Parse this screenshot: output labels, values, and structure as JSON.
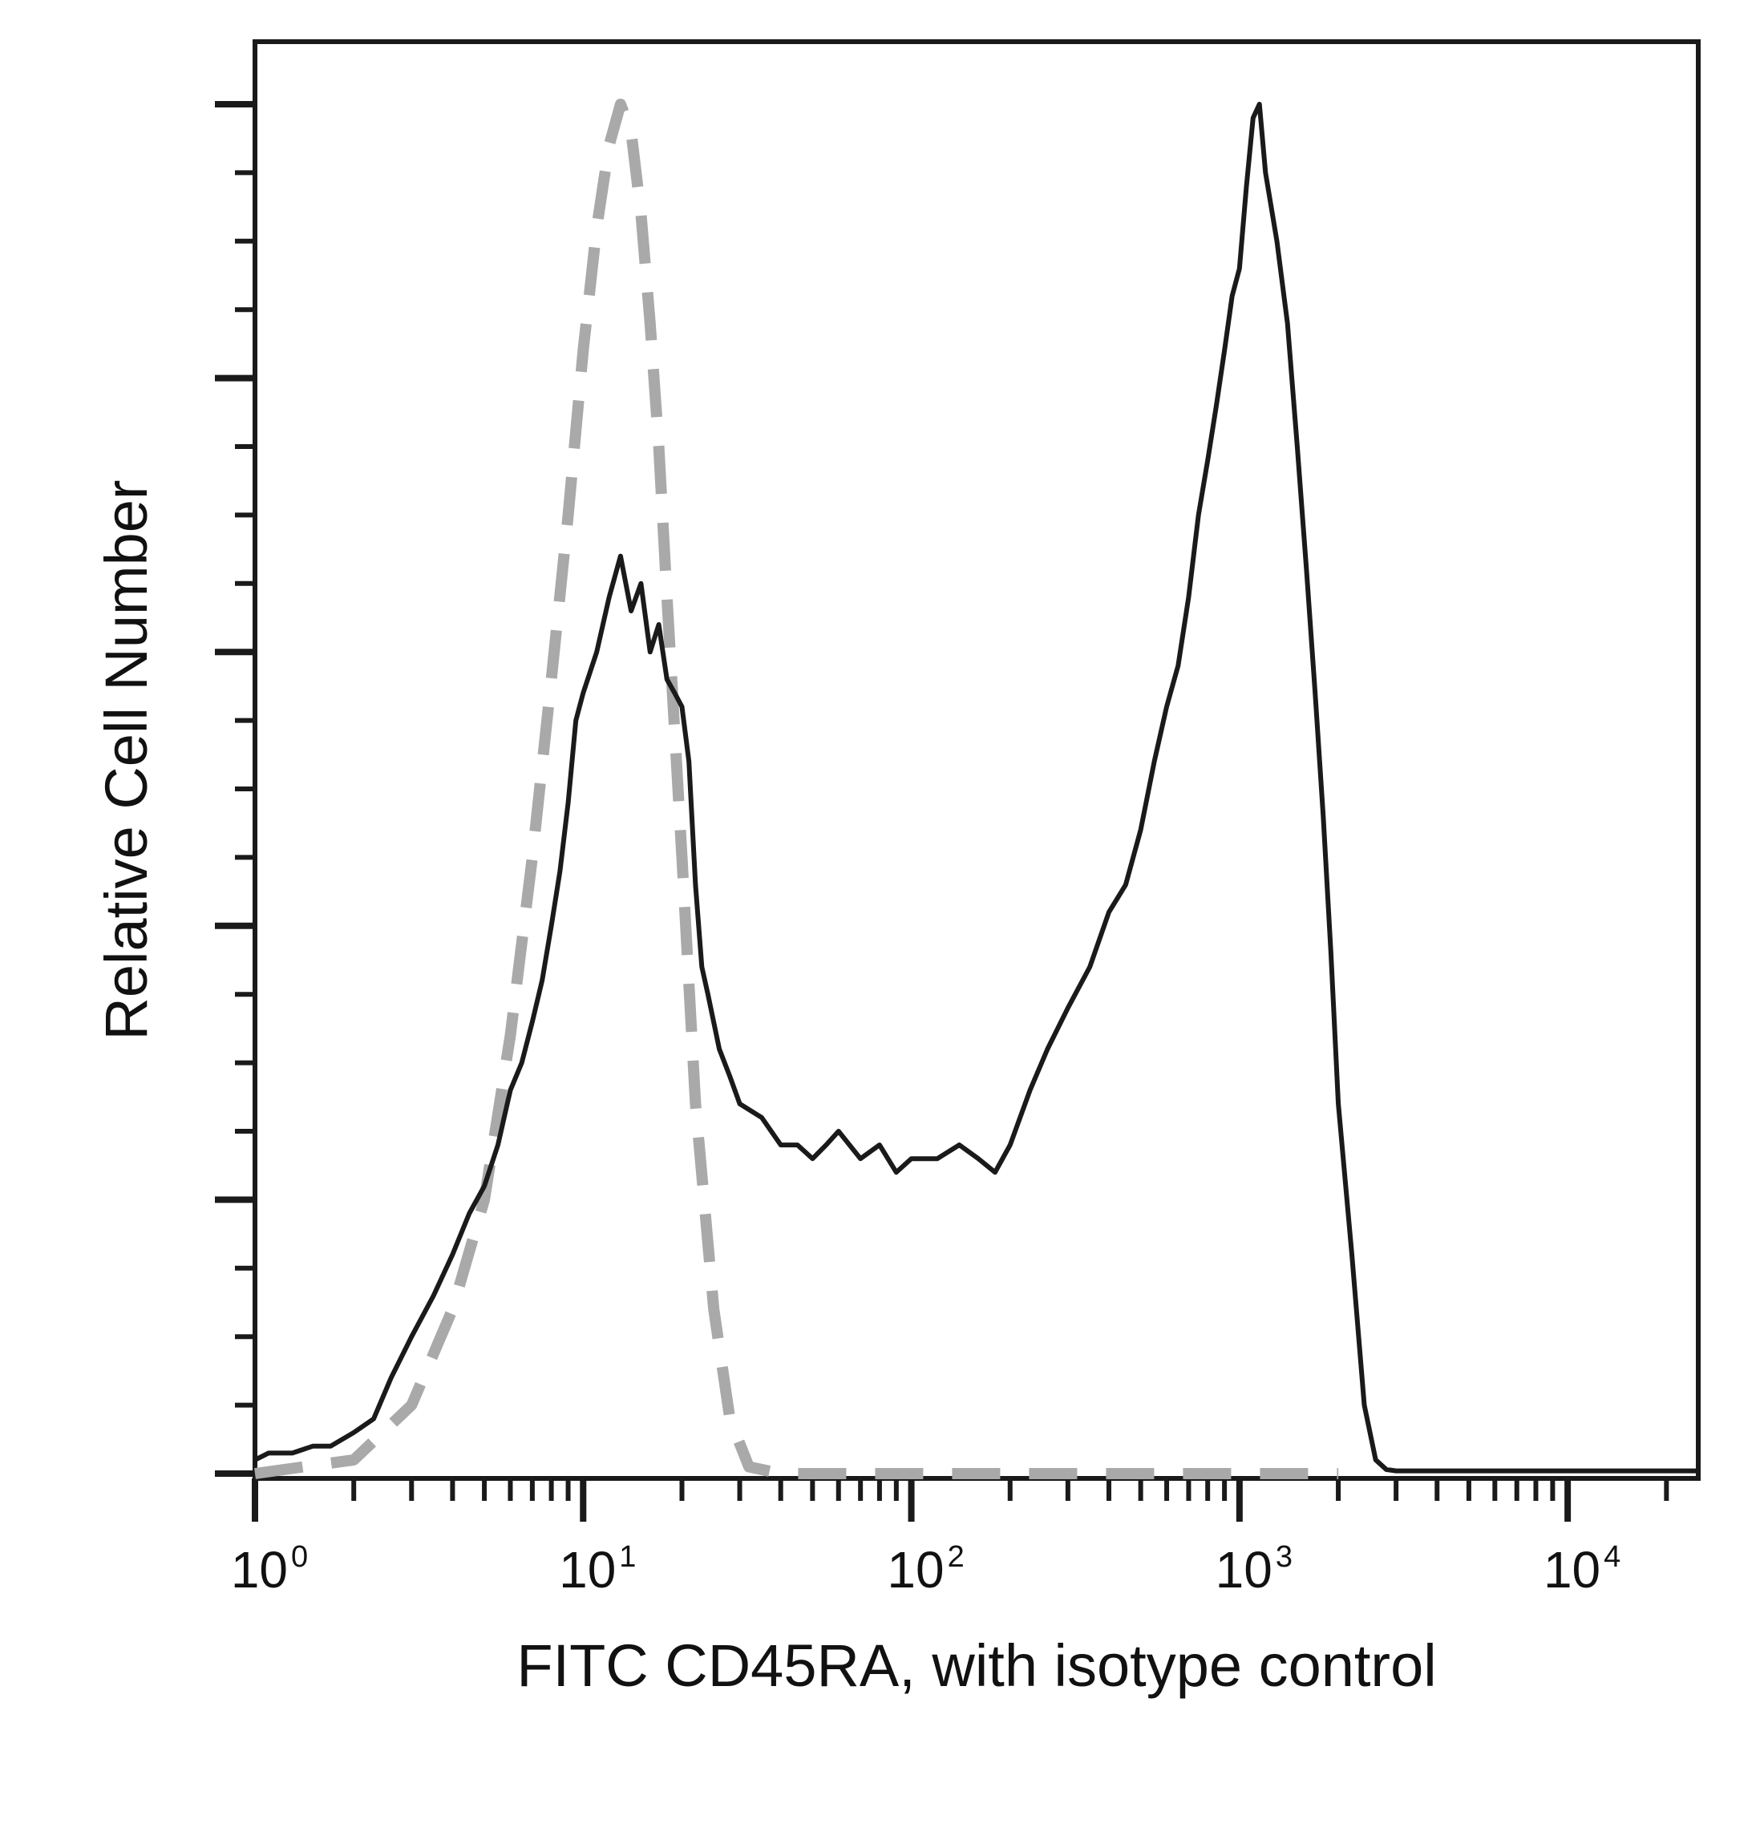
{
  "chart_data": {
    "type": "line",
    "xlabel": "FITC CD45RA, with isotype control",
    "ylabel": "Relative Cell Number",
    "x_scale": "log",
    "xlim": [
      1,
      25000
    ],
    "ylim": [
      0,
      100
    ],
    "x_ticks": [
      {
        "value": 1,
        "base": "10",
        "exp": "0"
      },
      {
        "value": 10,
        "base": "10",
        "exp": "1"
      },
      {
        "value": 100,
        "base": "10",
        "exp": "2"
      },
      {
        "value": 1000,
        "base": "10",
        "exp": "3"
      },
      {
        "value": 10000,
        "base": "10",
        "exp": "4"
      }
    ],
    "y_tick_labels_shown": false,
    "grid": false,
    "series": [
      {
        "style": "dashed",
        "color": "#a9a9a9",
        "x": [
          1,
          2,
          3,
          4,
          5,
          6,
          7,
          8,
          9,
          10,
          11,
          12,
          13,
          14,
          15,
          16,
          17,
          18,
          20,
          22,
          25,
          28,
          32,
          40,
          60,
          100,
          200,
          500,
          1000,
          2000
        ],
        "y": [
          0,
          1,
          5,
          12,
          20,
          32,
          45,
          58,
          70,
          82,
          91,
          97,
          100,
          98,
          92,
          84,
          75,
          64,
          45,
          27,
          12,
          4,
          0.5,
          0,
          0,
          0,
          0,
          0,
          0,
          0
        ]
      },
      {
        "style": "solid",
        "color": "#1a1a1a",
        "x": [
          1,
          1.1,
          1.3,
          1.5,
          1.7,
          2,
          2.3,
          2.6,
          3,
          3.5,
          4,
          4.5,
          5,
          5.5,
          6,
          6.5,
          7,
          7.5,
          8,
          8.5,
          9,
          9.5,
          10,
          11,
          12,
          13,
          14,
          15,
          16,
          17,
          18,
          19,
          20,
          21,
          22,
          23,
          24,
          26,
          28,
          30,
          35,
          40,
          45,
          50,
          55,
          60,
          70,
          80,
          90,
          100,
          120,
          140,
          160,
          180,
          200,
          230,
          260,
          300,
          350,
          400,
          450,
          500,
          550,
          600,
          650,
          700,
          750,
          800,
          850,
          900,
          950,
          1000,
          1050,
          1100,
          1150,
          1200,
          1300,
          1400,
          1500,
          1600,
          1700,
          1800,
          1900,
          2000,
          2200,
          2400,
          2600,
          2800,
          3000,
          3500,
          4000,
          5000,
          7000,
          10000,
          15000,
          25000
        ],
        "y": [
          1,
          1.5,
          1.5,
          2,
          2,
          3,
          4,
          7,
          10,
          13,
          16,
          19,
          21,
          24,
          28,
          30,
          33,
          36,
          40,
          44,
          49,
          55,
          57,
          60,
          64,
          67,
          63,
          65,
          60,
          62,
          58,
          57,
          56,
          52,
          43,
          37,
          35,
          31,
          29,
          27,
          26,
          24,
          24,
          23,
          24,
          25,
          23,
          24,
          22,
          23,
          23,
          24,
          23,
          22,
          24,
          28,
          31,
          34,
          37,
          41,
          43,
          47,
          52,
          56,
          59,
          64,
          70,
          74,
          78,
          82,
          86,
          88,
          94,
          99,
          100,
          95,
          90,
          84,
          75,
          66,
          57,
          48,
          38,
          27,
          16,
          5,
          1,
          0.3,
          0.2,
          0.2,
          0.2,
          0.2,
          0.2,
          0.2,
          0.2,
          0.2
        ]
      }
    ]
  }
}
